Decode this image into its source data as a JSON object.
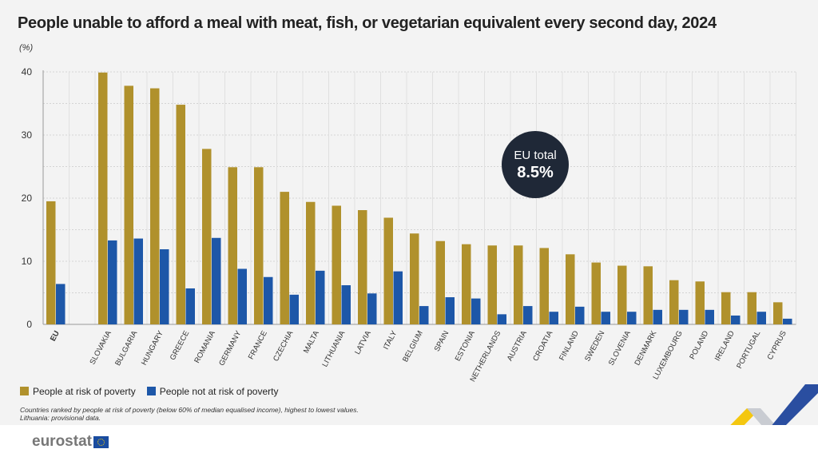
{
  "title": "People unable to afford a meal with meat, fish, or vegetarian equivalent every second day, 2024",
  "unit_label": "(%)",
  "badge": {
    "line1": "EU total",
    "line2": "8.5%"
  },
  "footnote": [
    "Countries ranked by people at risk of poverty (below 60% of median equalised income), highest to lowest values.",
    "Lithuania: provisional data."
  ],
  "logo": "eurostat",
  "colors": {
    "poverty": "#b0912c",
    "not_poverty": "#1d57a8"
  },
  "chart_data": {
    "type": "bar",
    "title": "People unable to afford a meal with meat, fish, or vegetarian equivalent every second day, 2024",
    "ylabel": "(%)",
    "ylim": [
      0,
      40
    ],
    "yticks": [
      0,
      10,
      20,
      30,
      40
    ],
    "grid": true,
    "legend_position": "bottom-left",
    "categories": [
      "EU",
      "",
      "SLOVAKIA",
      "BULGARIA",
      "HUNGARY",
      "GREECE",
      "ROMANIA",
      "GERMANY",
      "FRANCE",
      "CZECHIA",
      "MALTA",
      "LITHUANIA",
      "LATVIA",
      "ITALY",
      "BELGIUM",
      "SPAIN",
      "ESTONIA",
      "NETHERLANDS",
      "AUSTRIA",
      "CROATIA",
      "FINLAND",
      "SWEDEN",
      "SLOVENIA",
      "DENMARK",
      "LUXEMBOURG",
      "POLAND",
      "IRELAND",
      "PORTUGAL",
      "CYPRUS"
    ],
    "series": [
      {
        "name": "People at risk of poverty",
        "values": [
          19.5,
          null,
          39.9,
          37.8,
          37.4,
          34.8,
          27.8,
          24.9,
          24.9,
          21.0,
          19.4,
          18.8,
          18.1,
          16.9,
          14.4,
          13.2,
          12.7,
          12.5,
          12.5,
          12.1,
          11.1,
          9.8,
          9.3,
          9.2,
          7.0,
          6.8,
          5.1,
          5.1,
          3.5
        ]
      },
      {
        "name": "People not at risk of poverty",
        "values": [
          6.4,
          null,
          13.3,
          13.6,
          11.9,
          5.7,
          13.7,
          8.8,
          7.5,
          4.7,
          8.5,
          6.2,
          4.9,
          8.4,
          2.9,
          4.3,
          4.1,
          1.6,
          2.9,
          2.0,
          2.8,
          2.0,
          2.0,
          2.3,
          2.3,
          2.3,
          1.4,
          2.0,
          0.9
        ]
      }
    ]
  }
}
